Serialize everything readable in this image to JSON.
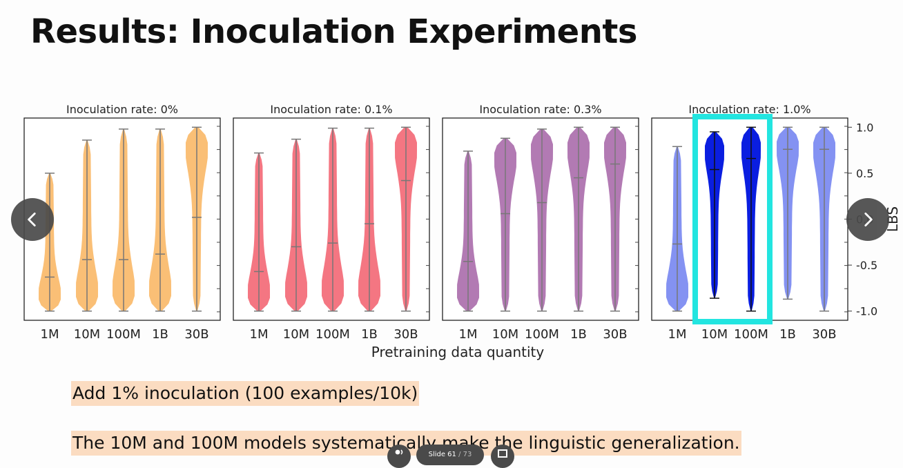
{
  "slide": {
    "title": "Results: Inoculation Experiments",
    "notes": [
      "Add 1% inoculation  (100 examples/10k)",
      "The 10M and 100M models systematically make the linguistic generalization."
    ]
  },
  "controls": {
    "prev_icon": "chevron-left-icon",
    "next_icon": "chevron-right-icon",
    "slide_label": "Slide 61",
    "slide_separator": "/",
    "slide_total": "73"
  },
  "chart_data": {
    "type": "violin",
    "xlabel": "Pretraining data quantity",
    "ylabel": "LBS",
    "ylim": [
      -1.1,
      1.1
    ],
    "yticks": [
      "1.0",
      "0.5",
      "0.0",
      "-0.5",
      "-1.0"
    ],
    "categories": [
      "1M",
      "10M",
      "100M",
      "1B",
      "30B"
    ],
    "highlight": {
      "panel": 3,
      "categories": [
        "10M",
        "100M"
      ],
      "color": "#22e5e0"
    },
    "panels": [
      {
        "title": "Inoculation rate: 0%",
        "color": "#f9b45e",
        "violins": [
          {
            "min": -1.0,
            "max": 0.5,
            "median": -0.63
          },
          {
            "min": -1.0,
            "max": 0.86,
            "median": -0.44
          },
          {
            "min": -1.0,
            "max": 0.98,
            "median": -0.44
          },
          {
            "min": -1.0,
            "max": 0.98,
            "median": -0.38
          },
          {
            "min": -1.0,
            "max": 1.0,
            "median": 0.02
          }
        ]
      },
      {
        "title": "Inoculation rate: 0.1%",
        "color": "#f25e6c",
        "violins": [
          {
            "min": -1.0,
            "max": 0.72,
            "median": -0.57
          },
          {
            "min": -1.0,
            "max": 0.87,
            "median": -0.3
          },
          {
            "min": -1.0,
            "max": 0.99,
            "median": -0.26
          },
          {
            "min": -1.0,
            "max": 0.99,
            "median": -0.05
          },
          {
            "min": -1.0,
            "max": 1.0,
            "median": 0.42
          }
        ]
      },
      {
        "title": "Inoculation rate: 0.3%",
        "color": "#a463a6",
        "violins": [
          {
            "min": -1.0,
            "max": 0.74,
            "median": -0.46
          },
          {
            "min": -1.0,
            "max": 0.88,
            "median": 0.06
          },
          {
            "min": -1.0,
            "max": 0.98,
            "median": 0.18
          },
          {
            "min": -1.0,
            "max": 1.0,
            "median": 0.45
          },
          {
            "min": -1.0,
            "max": 1.0,
            "median": 0.6
          }
        ]
      },
      {
        "title": "Inoculation rate: 1.0%",
        "color": "#6f7ff0",
        "dark_color": "#0a1ee0",
        "violins": [
          {
            "min": -1.0,
            "max": 0.79,
            "median": -0.27
          },
          {
            "min": -0.86,
            "max": 0.95,
            "median": 0.54
          },
          {
            "min": -1.0,
            "max": 1.0,
            "median": 0.66
          },
          {
            "min": -0.87,
            "max": 1.0,
            "median": 0.76
          },
          {
            "min": -1.0,
            "max": 1.0,
            "median": 0.76
          }
        ]
      }
    ]
  }
}
